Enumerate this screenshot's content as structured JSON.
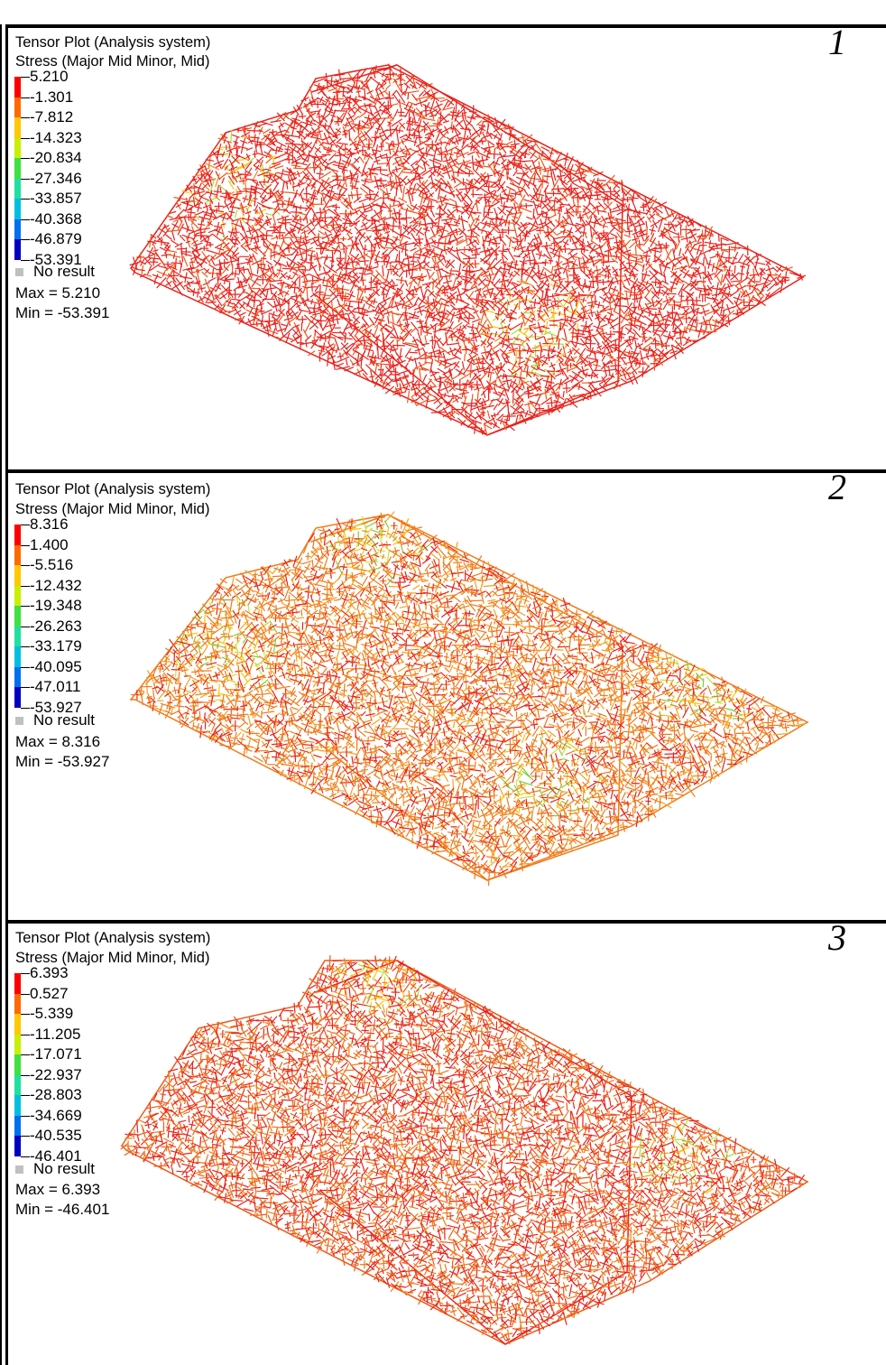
{
  "panels": [
    {
      "number": "1",
      "title": "Tensor Plot (Analysis system)",
      "subtitle": "Stress (Major Mid Minor, Mid)",
      "legend": [
        "5.210",
        "-1.301",
        "-7.812",
        "-14.323",
        "-20.834",
        "-27.346",
        "-33.857",
        "-40.368",
        "-46.879",
        "-53.391"
      ],
      "no_result": "No result",
      "max": "Max = 5.210",
      "min": "Min = -53.391",
      "dominant_color": "#e8231c"
    },
    {
      "number": "2",
      "title": "Tensor Plot (Analysis system)",
      "subtitle": "Stress (Major Mid Minor, Mid)",
      "legend": [
        "8.316",
        "1.400",
        "-5.516",
        "-12.432",
        "-19.348",
        "-26.263",
        "-33.179",
        "-40.095",
        "-47.011",
        "-53.927"
      ],
      "no_result": "No result",
      "max": "Max = 8.316",
      "min": "Min = -53.927",
      "dominant_color": "#f07a1a"
    },
    {
      "number": "3",
      "title": "Tensor Plot (Analysis system)",
      "subtitle": "Stress (Major Mid Minor, Mid)",
      "legend": [
        "6.393",
        "0.527",
        "-5.339",
        "-11.205",
        "-17.071",
        "-22.937",
        "-28.803",
        "-34.669",
        "-40.535",
        "-46.401"
      ],
      "no_result": "No result",
      "max": "Max = 6.393",
      "min": "Min = -46.401",
      "dominant_color": "#ee5a18"
    }
  ],
  "legend_colors": [
    "#ff0000",
    "#ff6a00",
    "#ffc800",
    "#c8f000",
    "#40e040",
    "#20e0a0",
    "#00c0e0",
    "#0070f0",
    "#0000c0"
  ]
}
